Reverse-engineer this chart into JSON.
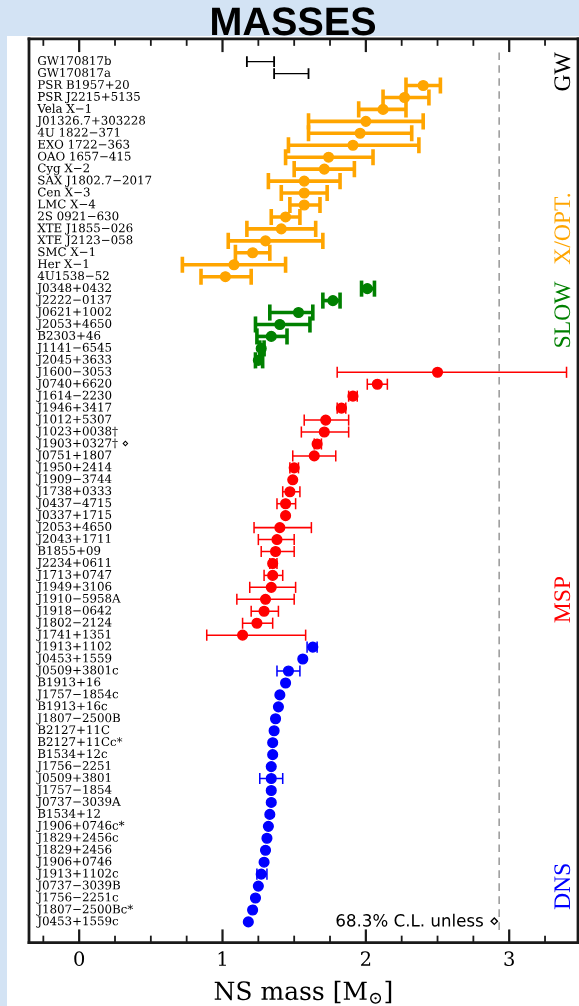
{
  "chart_data": {
    "type": "scatter",
    "orientation": "horizontal",
    "title": "MASSES",
    "xlabel": "NS mass [M$_{⊙}$]",
    "categories": [
      "GW170817b",
      "GW170817a",
      "PSR B1957+20",
      "PSR J2215+5135",
      "Vela X−1",
      "J01326.7+303228",
      "4U 1822−371",
      "EXO 1722−363",
      "OAO 1657−415",
      "Cyg X−2",
      "SAX J1802.7−2017",
      "Cen X−3",
      "LMC X−4",
      "2S 0921−630",
      "XTE J1855−026",
      "XTE J2123−058",
      "SMC X−1",
      "Her X−1",
      "4U1538−52",
      "J0348+0432",
      "J2222−0137",
      "J0621+1002",
      "J2053+4650",
      "B2303+46",
      "J1141−6545",
      "J2045+3633",
      "J1600−3053",
      "J0740+6620",
      "J1614−2230",
      "J1946+3417",
      "J1012+5307",
      "J1023+0038†",
      "J1903+0327† ⋄",
      "J0751+1807",
      "J1950+2414",
      "J1909−3744",
      "J1738+0333",
      "J0437−4715",
      "J0337+1715",
      "J2053+4650",
      "J2043+1711",
      "B1855+09",
      "J2234+0611",
      "J1713+0747",
      "J1949+3106",
      "J1910−5958A",
      "J1918−0642",
      "J1802−2124",
      "J1741+1351",
      "J1913+1102",
      "J0453+1559",
      "J0509+3801c",
      "B1913+16",
      "J1757−1854c",
      "B1913+16c",
      "J1807−2500B",
      "B2127+11C",
      "B2127+11Cc*",
      "B1534+12c",
      "J1756−2251",
      "J0509+3801",
      "J1757−1854",
      "J0737−3039A",
      "B1534+12",
      "J1906+0746c*",
      "J1829+2456c",
      "J1829+2456",
      "J1906+0746",
      "J1913+1102c",
      "J0737−3039B",
      "J1756−2251c",
      "J1807−2500Bc*",
      "J0453+1559c"
    ],
    "series": [
      {
        "name": "GW",
        "type": "bar",
        "color": "#000000",
        "base": [
          1.17,
          1.36,
          null,
          null,
          null,
          null,
          null,
          null,
          null,
          null,
          null,
          null,
          null,
          null,
          null,
          null,
          null,
          null,
          null,
          null,
          null,
          null,
          null,
          null,
          null,
          null,
          null,
          null,
          null,
          null,
          null,
          null,
          null,
          null,
          null,
          null,
          null,
          null,
          null,
          null,
          null,
          null,
          null,
          null,
          null,
          null,
          null,
          null,
          null,
          null,
          null,
          null,
          null,
          null,
          null,
          null,
          null,
          null,
          null,
          null,
          null,
          null,
          null,
          null,
          null,
          null,
          null,
          null,
          null,
          null,
          null,
          null,
          null
        ],
        "values": [
          0.19,
          0.24,
          null,
          null,
          null,
          null,
          null,
          null,
          null,
          null,
          null,
          null,
          null,
          null,
          null,
          null,
          null,
          null,
          null,
          null,
          null,
          null,
          null,
          null,
          null,
          null,
          null,
          null,
          null,
          null,
          null,
          null,
          null,
          null,
          null,
          null,
          null,
          null,
          null,
          null,
          null,
          null,
          null,
          null,
          null,
          null,
          null,
          null,
          null,
          null,
          null,
          null,
          null,
          null,
          null,
          null,
          null,
          null,
          null,
          null,
          null,
          null,
          null,
          null,
          null,
          null,
          null,
          null,
          null,
          null,
          null,
          null,
          null
        ]
      },
      {
        "name": "X/OPT.",
        "color": "#ffa500",
        "values": [
          null,
          null,
          2.4,
          2.27,
          2.12,
          2.0,
          1.96,
          1.91,
          1.74,
          1.71,
          1.57,
          1.57,
          1.57,
          1.44,
          1.41,
          1.3,
          1.21,
          1.08,
          1.02,
          null,
          null,
          null,
          null,
          null,
          null,
          null,
          null,
          null,
          null,
          null,
          null,
          null,
          null,
          null,
          null,
          null,
          null,
          null,
          null,
          null,
          null,
          null,
          null,
          null,
          null,
          null,
          null,
          null,
          null,
          null,
          null,
          null,
          null,
          null,
          null,
          null,
          null,
          null,
          null,
          null,
          null,
          null,
          null,
          null,
          null,
          null,
          null,
          null,
          null,
          null,
          null,
          null,
          null
        ],
        "errors": [
          null,
          null,
          [
            2.28,
            2.52
          ],
          [
            2.12,
            2.44
          ],
          [
            1.95,
            2.28
          ],
          [
            1.6,
            2.4
          ],
          [
            1.6,
            2.32
          ],
          [
            1.46,
            2.37
          ],
          [
            1.44,
            2.05
          ],
          [
            1.5,
            1.92
          ],
          [
            1.32,
            1.82
          ],
          [
            1.41,
            1.73
          ],
          [
            1.47,
            1.68
          ],
          [
            1.34,
            1.54
          ],
          [
            1.17,
            1.65
          ],
          [
            1.04,
            1.7
          ],
          [
            1.09,
            1.33
          ],
          [
            0.72,
            1.44
          ],
          [
            0.85,
            1.2
          ],
          null,
          null,
          null,
          null,
          null,
          null,
          null,
          null,
          null,
          null,
          null,
          null,
          null,
          null,
          null,
          null,
          null,
          null,
          null,
          null,
          null,
          null,
          null,
          null,
          null,
          null,
          null,
          null,
          null,
          null,
          null,
          null,
          null,
          null,
          null,
          null,
          null,
          null,
          null,
          null,
          null,
          null,
          null,
          null,
          null,
          null,
          null,
          null,
          null,
          null,
          null,
          null,
          null,
          null
        ]
      },
      {
        "name": "SLOW",
        "color": "#008000",
        "values": [
          null,
          null,
          null,
          null,
          null,
          null,
          null,
          null,
          null,
          null,
          null,
          null,
          null,
          null,
          null,
          null,
          null,
          null,
          null,
          2.01,
          1.77,
          1.53,
          1.4,
          1.34,
          1.27,
          1.25,
          null,
          null,
          null,
          null,
          null,
          null,
          null,
          null,
          null,
          null,
          null,
          null,
          null,
          null,
          null,
          null,
          null,
          null,
          null,
          null,
          null,
          null,
          null,
          null,
          null,
          null,
          null,
          null,
          null,
          null,
          null,
          null,
          null,
          null,
          null,
          null,
          null,
          null,
          null,
          null,
          null,
          null,
          null,
          null,
          null,
          null,
          null
        ],
        "errors": [
          null,
          null,
          null,
          null,
          null,
          null,
          null,
          null,
          null,
          null,
          null,
          null,
          null,
          null,
          null,
          null,
          null,
          null,
          null,
          [
            1.97,
            2.06
          ],
          [
            1.7,
            1.82
          ],
          [
            1.33,
            1.63
          ],
          [
            1.23,
            1.61
          ],
          [
            1.24,
            1.45
          ],
          [
            1.26,
            1.29
          ],
          [
            1.23,
            1.28
          ],
          null,
          null,
          null,
          null,
          null,
          null,
          null,
          null,
          null,
          null,
          null,
          null,
          null,
          null,
          null,
          null,
          null,
          null,
          null,
          null,
          null,
          null,
          null,
          null,
          null,
          null,
          null,
          null,
          null,
          null,
          null,
          null,
          null,
          null,
          null,
          null,
          null,
          null,
          null,
          null,
          null,
          null,
          null,
          null,
          null,
          null,
          null
        ]
      },
      {
        "name": "MSP",
        "color": "#ff0000",
        "values": [
          null,
          null,
          null,
          null,
          null,
          null,
          null,
          null,
          null,
          null,
          null,
          null,
          null,
          null,
          null,
          null,
          null,
          null,
          null,
          null,
          null,
          null,
          null,
          null,
          null,
          null,
          2.5,
          2.08,
          1.91,
          1.83,
          1.72,
          1.71,
          1.66,
          1.64,
          1.5,
          1.49,
          1.47,
          1.44,
          1.44,
          1.4,
          1.38,
          1.37,
          1.35,
          1.35,
          1.34,
          1.3,
          1.29,
          1.24,
          1.14,
          null,
          null,
          null,
          null,
          null,
          null,
          null,
          null,
          null,
          null,
          null,
          null,
          null,
          null,
          null,
          null,
          null,
          null,
          null,
          null,
          null,
          null,
          null,
          null
        ],
        "errors": [
          null,
          null,
          null,
          null,
          null,
          null,
          null,
          null,
          null,
          null,
          null,
          null,
          null,
          null,
          null,
          null,
          null,
          null,
          null,
          null,
          null,
          null,
          null,
          null,
          null,
          null,
          [
            1.8,
            3.4
          ],
          [
            2.01,
            2.15
          ],
          [
            1.88,
            1.94
          ],
          [
            1.8,
            1.86
          ],
          [
            1.57,
            1.88
          ],
          [
            1.55,
            1.88
          ],
          [
            1.64,
            1.69
          ],
          [
            1.49,
            1.79
          ],
          [
            1.47,
            1.53
          ],
          null,
          [
            1.42,
            1.54
          ],
          [
            1.38,
            1.51
          ],
          null,
          [
            1.22,
            1.62
          ],
          [
            1.25,
            1.5
          ],
          [
            1.27,
            1.5
          ],
          [
            1.33,
            1.38
          ],
          [
            1.29,
            1.42
          ],
          [
            1.19,
            1.51
          ],
          [
            1.1,
            1.5
          ],
          [
            1.2,
            1.39
          ],
          [
            1.14,
            1.35
          ],
          [
            0.89,
            1.58
          ],
          null,
          null,
          null,
          null,
          null,
          null,
          null,
          null,
          null,
          null,
          null,
          null,
          null,
          null,
          null,
          null,
          null,
          null,
          null,
          null,
          null,
          null,
          null,
          null
        ]
      },
      {
        "name": "DNS",
        "color": "#0000ff",
        "values": [
          null,
          null,
          null,
          null,
          null,
          null,
          null,
          null,
          null,
          null,
          null,
          null,
          null,
          null,
          null,
          null,
          null,
          null,
          null,
          null,
          null,
          null,
          null,
          null,
          null,
          null,
          null,
          null,
          null,
          null,
          null,
          null,
          null,
          null,
          null,
          null,
          null,
          null,
          null,
          null,
          null,
          null,
          null,
          null,
          null,
          null,
          null,
          null,
          null,
          1.63,
          1.56,
          1.46,
          1.44,
          1.4,
          1.39,
          1.37,
          1.36,
          1.35,
          1.35,
          1.34,
          1.34,
          1.34,
          1.34,
          1.33,
          1.32,
          1.31,
          1.3,
          1.29,
          1.27,
          1.25,
          1.23,
          1.21,
          1.18
        ],
        "errors": [
          null,
          null,
          null,
          null,
          null,
          null,
          null,
          null,
          null,
          null,
          null,
          null,
          null,
          null,
          null,
          null,
          null,
          null,
          null,
          null,
          null,
          null,
          null,
          null,
          null,
          null,
          null,
          null,
          null,
          null,
          null,
          null,
          null,
          null,
          null,
          null,
          null,
          null,
          null,
          null,
          null,
          null,
          null,
          null,
          null,
          null,
          null,
          null,
          null,
          [
            1.59,
            1.66
          ],
          null,
          [
            1.38,
            1.54
          ],
          null,
          null,
          null,
          null,
          null,
          null,
          null,
          null,
          [
            1.26,
            1.42
          ],
          null,
          null,
          null,
          null,
          null,
          null,
          null,
          [
            1.24,
            1.31
          ],
          null,
          null,
          null,
          null
        ]
      }
    ],
    "xlim": [
      -0.35,
      3.48
    ],
    "xticks": [
      0,
      1,
      2,
      3
    ],
    "marker": "circle",
    "grid": false,
    "legend": false,
    "ref_lines": [
      {
        "axis": "x",
        "value": 2.93,
        "color": "#999999",
        "line_style": "dashed"
      }
    ],
    "annotations": [
      "68.3% C.L. unless ⋄"
    ]
  }
}
